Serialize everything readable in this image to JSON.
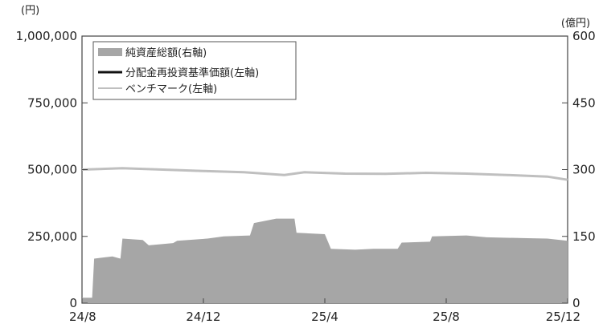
{
  "chart_data": {
    "type": "area",
    "title": "",
    "x_ticks": [
      "24/8",
      "24/12",
      "25/4",
      "25/8",
      "25/12"
    ],
    "left_axis": {
      "unit": "(円)",
      "ylim": [
        0,
        1000000
      ],
      "tick_values": [
        0,
        250000,
        500000,
        750000,
        1000000
      ],
      "tick_labels": [
        "0",
        "250,000",
        "500,000",
        "750,000",
        "1,000,000"
      ]
    },
    "right_axis": {
      "unit": "(億円)",
      "ylim": [
        0,
        600
      ],
      "tick_values": [
        0,
        150,
        300,
        450,
        600
      ],
      "tick_labels": [
        "0",
        "150",
        "300",
        "450",
        "600"
      ]
    },
    "legend": {
      "placement": "top-left",
      "items": [
        {
          "key": "net_assets",
          "label": "純資産総額(右軸)",
          "swatch": "area"
        },
        {
          "key": "nav",
          "label": "分配金再投資基準価額(左軸)",
          "swatch": "line"
        },
        {
          "key": "benchmark",
          "label": "ベンチマーク(左軸)",
          "swatch": "line"
        }
      ]
    },
    "series": [
      {
        "key": "net_assets",
        "axis": "right",
        "color": "#a6a6a6",
        "points": [
          [
            0.0,
            12
          ],
          [
            0.5,
            12
          ],
          [
            0.6,
            100
          ],
          [
            1.5,
            105
          ],
          [
            1.9,
            100
          ],
          [
            2.0,
            145
          ],
          [
            3.0,
            142
          ],
          [
            3.3,
            130
          ],
          [
            4.5,
            135
          ],
          [
            4.7,
            140
          ],
          [
            6.2,
            145
          ],
          [
            7.0,
            150
          ],
          [
            8.3,
            152
          ],
          [
            8.5,
            180
          ],
          [
            9.6,
            190
          ],
          [
            10.5,
            190
          ],
          [
            10.6,
            158
          ],
          [
            12.0,
            155
          ],
          [
            12.3,
            122
          ],
          [
            13.5,
            120
          ],
          [
            14.4,
            122
          ],
          [
            15.6,
            122
          ],
          [
            15.8,
            136
          ],
          [
            17.2,
            138
          ],
          [
            17.3,
            150
          ],
          [
            19.0,
            152
          ],
          [
            20.0,
            148
          ],
          [
            22.0,
            146
          ],
          [
            23.0,
            145
          ],
          [
            24.0,
            140
          ]
        ]
      },
      {
        "key": "nav",
        "axis": "left",
        "color": "#111111",
        "points": []
      },
      {
        "key": "benchmark",
        "axis": "left",
        "color": "#bfbfbf",
        "points": [
          [
            0,
            500000
          ],
          [
            2,
            505000
          ],
          [
            4,
            500000
          ],
          [
            6,
            495000
          ],
          [
            8,
            490000
          ],
          [
            10,
            480000
          ],
          [
            11,
            490000
          ],
          [
            13,
            485000
          ],
          [
            15,
            484000
          ],
          [
            17,
            488000
          ],
          [
            19,
            485000
          ],
          [
            21,
            480000
          ],
          [
            23,
            474000
          ],
          [
            24,
            462000
          ]
        ]
      }
    ],
    "x_months": {
      "start": 0,
      "end": 24,
      "tick_months": [
        0,
        4,
        8,
        12,
        16
      ]
    }
  }
}
